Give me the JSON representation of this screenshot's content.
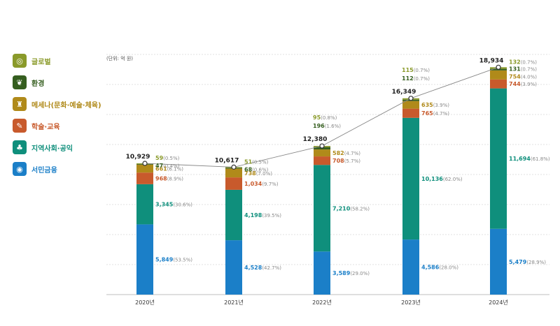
{
  "unit_label": "(단위: 억 원)",
  "legend": [
    {
      "label": "글로벌",
      "color": "#8a9a2a",
      "icon": "globe-icon",
      "glyph": "◎"
    },
    {
      "label": "환경",
      "color": "#355e1f",
      "icon": "leaf-icon",
      "glyph": "❦"
    },
    {
      "label": "메세나(문화·예술·체육)",
      "color": "#b08a1a",
      "icon": "trophy-icon",
      "glyph": "♜"
    },
    {
      "label": "학술·교육",
      "color": "#c85a2c",
      "icon": "book-icon",
      "glyph": "✎"
    },
    {
      "label": "지역사회·공익",
      "color": "#0f8f7c",
      "icon": "people-icon",
      "glyph": "♣"
    },
    {
      "label": "서민금융",
      "color": "#1b7fc8",
      "icon": "coins-icon",
      "glyph": "◉"
    }
  ],
  "chart_data": {
    "type": "bar",
    "stacked": true,
    "unit": "억 원",
    "categories": [
      "2020년",
      "2021년",
      "2022년",
      "2023년",
      "2024년"
    ],
    "totals": [
      10929,
      10617,
      12380,
      16349,
      18934
    ],
    "total_labels": [
      "10,929",
      "10,617",
      "12,380",
      "16,349",
      "18,934"
    ],
    "series": [
      {
        "name": "서민금융",
        "color": "#1b7fc8",
        "values": [
          5849,
          4528,
          3589,
          4586,
          5479
        ],
        "labels": [
          "5,849",
          "4,528",
          "3,589",
          "4,586",
          "5,479"
        ],
        "pct": [
          "(53.5%)",
          "(42.7%)",
          "(29.0%)",
          "(28.0%)",
          "(28.9%)"
        ]
      },
      {
        "name": "지역사회·공익",
        "color": "#0f8f7c",
        "values": [
          3345,
          4198,
          7210,
          10136,
          11694
        ],
        "labels": [
          "3,345",
          "4,198",
          "7,210",
          "10,136",
          "11,694"
        ],
        "pct": [
          "(30.6%)",
          "(39.5%)",
          "(58.2%)",
          "(62.0%)",
          "(61.8%)"
        ]
      },
      {
        "name": "학술·교육",
        "color": "#c85a2c",
        "values": [
          968,
          1034,
          708,
          765,
          744
        ],
        "labels": [
          "968",
          "1,034",
          "708",
          "765",
          "744"
        ],
        "pct": [
          "(8.9%)",
          "(9.7%)",
          "(5.7%)",
          "(4.7%)",
          "(3.9%)"
        ]
      },
      {
        "name": "메세나(문화·예술·체육)",
        "color": "#b08a1a",
        "values": [
          661,
          738,
          582,
          635,
          754
        ],
        "labels": [
          "661",
          "738",
          "582",
          "635",
          "754"
        ],
        "pct": [
          "(6.1%)",
          "(7.0%)",
          "(4.7%)",
          "(3.9%)",
          "(4.0%)"
        ]
      },
      {
        "name": "환경",
        "color": "#355e1f",
        "values": [
          47,
          68,
          196,
          112,
          131
        ],
        "labels": [
          "47",
          "68",
          "196",
          "112",
          "131"
        ],
        "pct": [
          "(0.4%)",
          "(0.6%)",
          "(1.6%)",
          "(0.7%)",
          "(0.7%)"
        ]
      },
      {
        "name": "글로벌",
        "color": "#8a9a2a",
        "values": [
          59,
          51,
          95,
          115,
          132
        ],
        "labels": [
          "59",
          "51",
          "95",
          "115",
          "132"
        ],
        "pct": [
          "(0.5%)",
          "(0.5%)",
          "(0.8%)",
          "(0.7%)",
          "(0.7%)"
        ]
      }
    ],
    "ylim": [
      0,
      20000
    ],
    "grid": true,
    "total_line": true
  }
}
